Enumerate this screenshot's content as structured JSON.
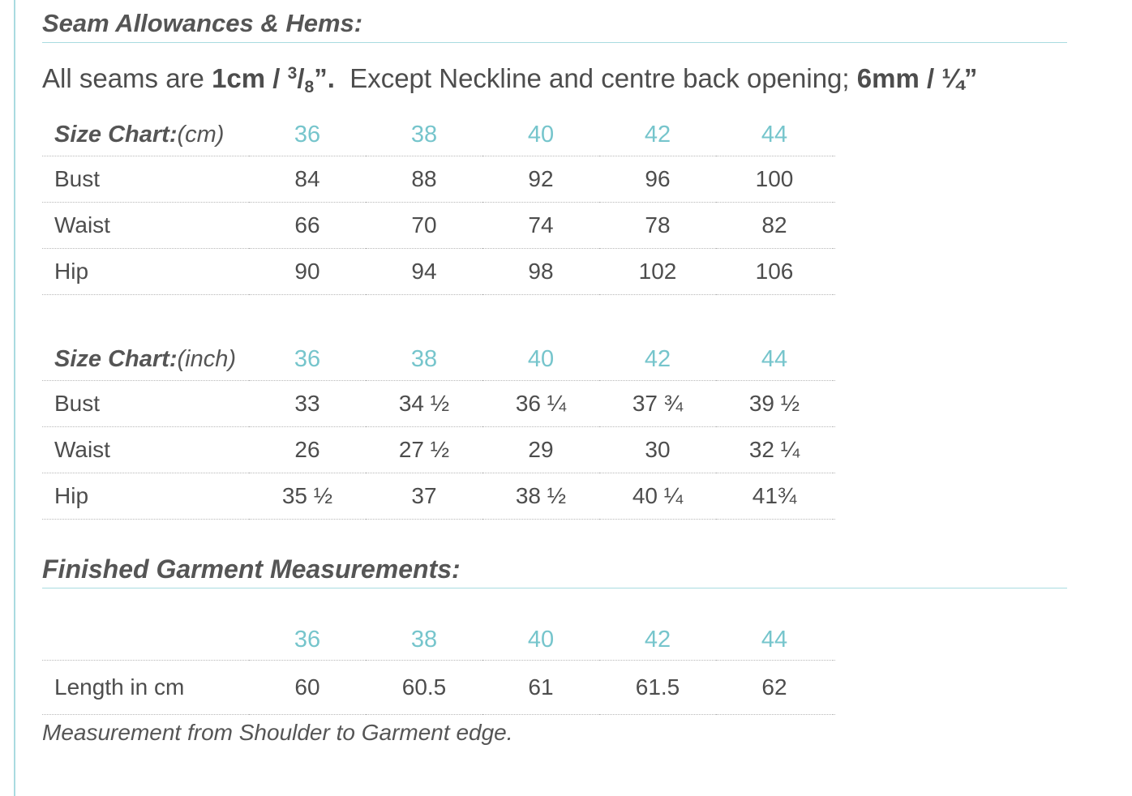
{
  "seam": {
    "heading": "Seam Allowances & Hems:",
    "text_prefix": "All seams are ",
    "value1_main": "1cm / ",
    "value1_sup": "3",
    "value1_slash": "/",
    "value1_sub": "8",
    "value1_end": "”.",
    "text_middle": "  Except Neckline and centre back opening; ",
    "value2": "6mm / ¼”"
  },
  "sizes": [
    "36",
    "38",
    "40",
    "42",
    "44"
  ],
  "cm_chart": {
    "label_bold": "Size Chart:",
    "label_unit": "(cm)",
    "rows": [
      {
        "label": "Bust",
        "values": [
          "84",
          "88",
          "92",
          "96",
          "100"
        ]
      },
      {
        "label": "Waist",
        "values": [
          "66",
          "70",
          "74",
          "78",
          "82"
        ]
      },
      {
        "label": "Hip",
        "values": [
          "90",
          "94",
          "98",
          "102",
          "106"
        ]
      }
    ]
  },
  "inch_chart": {
    "label_bold": "Size Chart:",
    "label_unit": "(inch)",
    "rows": [
      {
        "label": "Bust",
        "values": [
          "33",
          "34 ½",
          "36 ¼",
          "37 ¾",
          "39 ½"
        ]
      },
      {
        "label": "Waist",
        "values": [
          "26",
          "27 ½",
          "29",
          "30",
          "32 ¼"
        ]
      },
      {
        "label": "Hip",
        "values": [
          "35 ½",
          "37",
          "38 ½",
          "40 ¼",
          "41¾"
        ]
      }
    ]
  },
  "garment": {
    "heading": "Finished Garment Measurements:",
    "rows": [
      {
        "label": "Length in cm",
        "values": [
          "60",
          "60.5",
          "61",
          "61.5",
          "62"
        ]
      }
    ],
    "note": "Measurement from Shoulder to Garment edge."
  },
  "colors": {
    "accent": "#76c5cc",
    "rule": "#a9dbe0",
    "text": "#4d4d4d"
  }
}
